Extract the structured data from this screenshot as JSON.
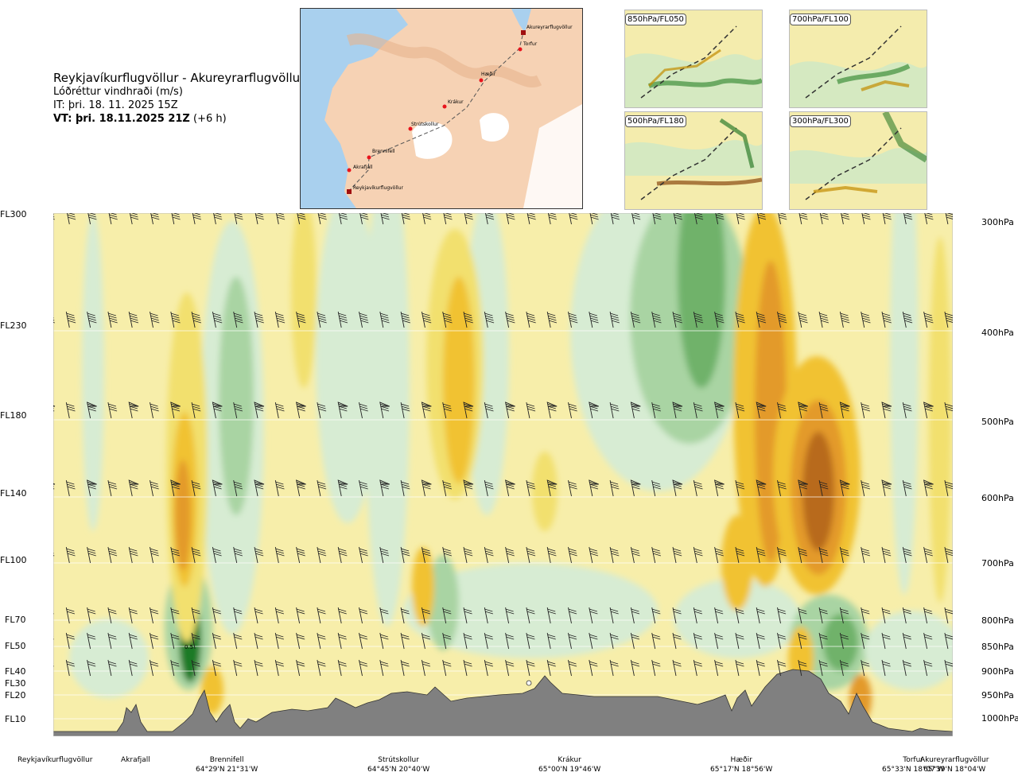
{
  "title": {
    "route": "Reykjavíkurflugvöllur - Akureyrarflugvöllur",
    "parameter": "Lóðréttur vindhraði (m/s)",
    "issue_time": "IT: þri. 18. 11. 2025 15Z",
    "valid_time_bold": "VT: þri. 18.11.2025 21Z",
    "valid_offset": "(+6 h)"
  },
  "route_map": {
    "waypoints": [
      {
        "name": "Reykjavíkurflugvöllur"
      },
      {
        "name": "Akrafjall"
      },
      {
        "name": "Brennifell"
      },
      {
        "name": "Strútskollur"
      },
      {
        "name": "Krákur"
      },
      {
        "name": "Hæðir"
      },
      {
        "name": "Torfur"
      },
      {
        "name": "Akureyrarflugvöllur"
      }
    ],
    "colors": {
      "land": "#f6c9a4",
      "sea": "#9cc8ea",
      "ice": "#ffffff",
      "route": "#555555",
      "point": "#e8141c"
    }
  },
  "mini_maps": [
    {
      "label": "850hPa/FL050"
    },
    {
      "label": "700hPa/FL100"
    },
    {
      "label": "500hPa/FL180"
    },
    {
      "label": "300hPa/FL300"
    }
  ],
  "levels": [
    {
      "fl": "FL300",
      "hpa": "300hPa"
    },
    {
      "fl": "FL230",
      "hpa": "400hPa"
    },
    {
      "fl": "FL180",
      "hpa": "500hPa"
    },
    {
      "fl": "FL140",
      "hpa": "600hPa"
    },
    {
      "fl": "FL100",
      "hpa": "700hPa"
    },
    {
      "fl": "FL70",
      "hpa": "800hPa"
    },
    {
      "fl": "FL50",
      "hpa": "850hPa"
    },
    {
      "fl": "FL40",
      "hpa": "900hPa"
    },
    {
      "fl": "FL30",
      "hpa": ""
    },
    {
      "fl": "FL20",
      "hpa": "950hPa"
    },
    {
      "fl": "FL10",
      "hpa": "1000hPa"
    }
  ],
  "contour_value_label": "0.5",
  "locations": [
    {
      "name": "Reykjavíkurflugvöllur",
      "coord": ""
    },
    {
      "name": "Akrafjall",
      "coord": ""
    },
    {
      "name": "Brennifell",
      "coord": "64°29'N 21°31'W"
    },
    {
      "name": "Strútskollur",
      "coord": "64°45'N 20°40'W"
    },
    {
      "name": "Krákur",
      "coord": "65°00'N 19°46'W"
    },
    {
      "name": "Hæðir",
      "coord": "65°17'N 18°56'W"
    },
    {
      "name": "Torfur",
      "coord": "65°33'N 18°07'W"
    },
    {
      "name": "Akureyrarflugvöllur",
      "coord": "65°39'N 18°04'W"
    }
  ],
  "palette": {
    "down_strong": "#b86a1c",
    "down_med": "#e39a2a",
    "down": "#f1c232",
    "down_weak": "#f2e06e",
    "neutral": "#f7eeaa",
    "neutral_light": "#fbf5d2",
    "up_weak": "#d7ecd3",
    "up": "#a9d4a3",
    "up_med": "#6fb26b",
    "up_strong": "#1f7a28",
    "terrain": "#808080"
  }
}
